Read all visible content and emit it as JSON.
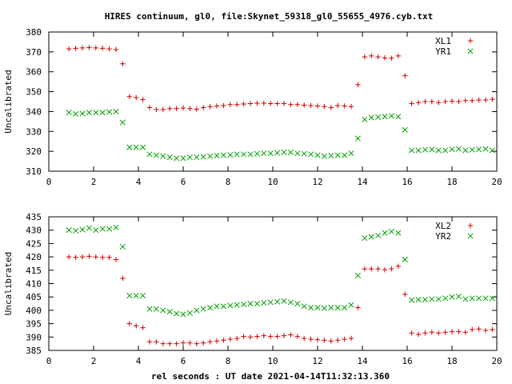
{
  "title": "HIRES continuum, gl0, file:Skynet_59318_gl0_55655_4976.cyb.txt",
  "xlabel": "rel seconds : UT date 2021-04-14T11:32:13.360",
  "colors": {
    "red": "#d00000",
    "green": "#00a000",
    "axis": "#000000"
  },
  "chart_data": [
    {
      "type": "scatter",
      "ylabel": "Uncalibrated",
      "xlim": [
        0,
        20
      ],
      "ylim": [
        310,
        380
      ],
      "xticks": [
        0,
        2,
        4,
        6,
        8,
        10,
        12,
        14,
        16,
        18,
        20
      ],
      "yticks": [
        310,
        320,
        330,
        340,
        350,
        360,
        370,
        380
      ],
      "legend_position": "top-right",
      "series": [
        {
          "name": "XL1",
          "marker": "plus",
          "color": "#d00000",
          "x": [
            0.9,
            1.2,
            1.5,
            1.8,
            2.1,
            2.4,
            2.7,
            3.0,
            3.3,
            3.6,
            3.9,
            4.2,
            4.5,
            4.8,
            5.1,
            5.4,
            5.7,
            6.0,
            6.3,
            6.6,
            6.9,
            7.2,
            7.5,
            7.8,
            8.1,
            8.4,
            8.7,
            9.0,
            9.3,
            9.6,
            9.9,
            10.2,
            10.5,
            10.8,
            11.1,
            11.4,
            11.7,
            12.0,
            12.3,
            12.6,
            12.9,
            13.2,
            13.5,
            13.8,
            14.1,
            14.4,
            14.7,
            15.0,
            15.3,
            15.6,
            15.9,
            16.2,
            16.5,
            16.8,
            17.1,
            17.4,
            17.7,
            18.0,
            18.3,
            18.6,
            18.9,
            19.2,
            19.5,
            19.8
          ],
          "y": [
            371.5,
            371.8,
            372,
            372.2,
            372,
            371.8,
            371.5,
            371.2,
            364,
            347.5,
            347,
            346,
            342,
            341,
            341,
            341.5,
            341.5,
            341.8,
            341.5,
            341.2,
            342,
            342.5,
            342.8,
            343,
            343.5,
            343.5,
            343.8,
            344,
            344.2,
            344.2,
            344,
            344,
            344,
            343.5,
            343.5,
            343.2,
            343,
            342.8,
            342.5,
            342,
            343,
            342.8,
            342.5,
            353.5,
            367.5,
            368,
            367.5,
            367,
            366.8,
            368,
            358,
            344,
            344.5,
            345,
            345,
            344.5,
            345,
            345.2,
            345,
            345.5,
            345.5,
            345.8,
            345.8,
            346.2
          ]
        },
        {
          "name": "YR1",
          "marker": "cross",
          "color": "#00a000",
          "x": [
            0.9,
            1.2,
            1.5,
            1.8,
            2.1,
            2.4,
            2.7,
            3.0,
            3.3,
            3.6,
            3.9,
            4.2,
            4.5,
            4.8,
            5.1,
            5.4,
            5.7,
            6.0,
            6.3,
            6.6,
            6.9,
            7.2,
            7.5,
            7.8,
            8.1,
            8.4,
            8.7,
            9.0,
            9.3,
            9.6,
            9.9,
            10.2,
            10.5,
            10.8,
            11.1,
            11.4,
            11.7,
            12.0,
            12.3,
            12.6,
            12.9,
            13.2,
            13.5,
            13.8,
            14.1,
            14.4,
            14.7,
            15.0,
            15.3,
            15.6,
            15.9,
            16.2,
            16.5,
            16.8,
            17.1,
            17.4,
            17.7,
            18.0,
            18.3,
            18.6,
            18.9,
            19.2,
            19.5,
            19.8
          ],
          "y": [
            339.5,
            338.8,
            339,
            339.5,
            339.5,
            339.5,
            339.8,
            340,
            334.5,
            322,
            322,
            322,
            318.5,
            318,
            317.5,
            317,
            316.5,
            316.5,
            317,
            317,
            317.2,
            317.5,
            317.8,
            318,
            318.2,
            318.5,
            318.5,
            318.5,
            318.8,
            319,
            319,
            319.2,
            319.5,
            319.5,
            319,
            318.8,
            318.5,
            318,
            317.5,
            317.8,
            318,
            318,
            319,
            326.5,
            336,
            337,
            337.2,
            337.5,
            337.8,
            337.5,
            330.8,
            320.5,
            320.5,
            320.8,
            321,
            320.5,
            320.5,
            321,
            321.2,
            320.5,
            320.8,
            321,
            321.2,
            320.5
          ]
        }
      ]
    },
    {
      "type": "scatter",
      "ylabel": "Uncalibrated",
      "xlim": [
        0,
        20
      ],
      "ylim": [
        385,
        435
      ],
      "xticks": [
        0,
        2,
        4,
        6,
        8,
        10,
        12,
        14,
        16,
        18,
        20
      ],
      "yticks": [
        385,
        390,
        395,
        400,
        405,
        410,
        415,
        420,
        425,
        430,
        435
      ],
      "legend_position": "top-right",
      "series": [
        {
          "name": "XL2",
          "marker": "plus",
          "color": "#d00000",
          "x": [
            0.9,
            1.2,
            1.5,
            1.8,
            2.1,
            2.4,
            2.7,
            3.0,
            3.3,
            3.6,
            3.9,
            4.2,
            4.5,
            4.8,
            5.1,
            5.4,
            5.7,
            6.0,
            6.3,
            6.6,
            6.9,
            7.2,
            7.5,
            7.8,
            8.1,
            8.4,
            8.7,
            9.0,
            9.3,
            9.6,
            9.9,
            10.2,
            10.5,
            10.8,
            11.1,
            11.4,
            11.7,
            12.0,
            12.3,
            12.6,
            12.9,
            13.2,
            13.5,
            13.8,
            14.1,
            14.4,
            14.7,
            15.0,
            15.3,
            15.6,
            15.9,
            16.2,
            16.5,
            16.8,
            17.1,
            17.4,
            17.7,
            18.0,
            18.3,
            18.6,
            18.9,
            19.2,
            19.5,
            19.8
          ],
          "y": [
            420,
            419.8,
            420,
            420.2,
            420,
            419.8,
            419.8,
            419,
            412,
            395,
            394.2,
            393.5,
            388.2,
            388.2,
            387.5,
            387.5,
            387.5,
            387.8,
            387.8,
            387.5,
            387.8,
            388.2,
            388.5,
            388.8,
            389.2,
            389.5,
            390.2,
            390,
            390.2,
            390.5,
            390.2,
            390.2,
            390.5,
            390.8,
            390.2,
            389.5,
            389.2,
            389,
            388.8,
            388.5,
            388.8,
            389.2,
            389.5,
            401,
            415.5,
            415.5,
            415.5,
            415.2,
            415.5,
            416.5,
            406,
            391.5,
            391,
            391.5,
            391.8,
            391.5,
            391.8,
            392,
            392,
            391.8,
            392.8,
            393,
            392.5,
            392.8
          ]
        },
        {
          "name": "YR2",
          "marker": "cross",
          "color": "#00a000",
          "x": [
            0.9,
            1.2,
            1.5,
            1.8,
            2.1,
            2.4,
            2.7,
            3.0,
            3.3,
            3.6,
            3.9,
            4.2,
            4.5,
            4.8,
            5.1,
            5.4,
            5.7,
            6.0,
            6.3,
            6.6,
            6.9,
            7.2,
            7.5,
            7.8,
            8.1,
            8.4,
            8.7,
            9.0,
            9.3,
            9.6,
            9.9,
            10.2,
            10.5,
            10.8,
            11.1,
            11.4,
            11.7,
            12.0,
            12.3,
            12.6,
            12.9,
            13.2,
            13.5,
            13.8,
            14.1,
            14.4,
            14.7,
            15.0,
            15.3,
            15.6,
            15.9,
            16.2,
            16.5,
            16.8,
            17.1,
            17.4,
            17.7,
            18.0,
            18.3,
            18.6,
            18.9,
            19.2,
            19.5,
            19.8
          ],
          "y": [
            430,
            429.8,
            430.2,
            430.8,
            430,
            430.5,
            430.5,
            431,
            423.8,
            405.5,
            405.5,
            405.5,
            400.5,
            400.5,
            400,
            399.5,
            398.8,
            398.5,
            399,
            400,
            400.5,
            401,
            401.5,
            401.5,
            401.8,
            402,
            402.2,
            402.5,
            402.5,
            402.8,
            403,
            403.2,
            403.5,
            403,
            402.5,
            401.5,
            401,
            401,
            400.8,
            401,
            401,
            401,
            402,
            413,
            427,
            427.5,
            428,
            429,
            429.5,
            429,
            419,
            403.8,
            404,
            404,
            404.2,
            404.2,
            404.5,
            405,
            405.2,
            404.2,
            404.5,
            404.5,
            404.5,
            404.5
          ]
        }
      ]
    }
  ]
}
